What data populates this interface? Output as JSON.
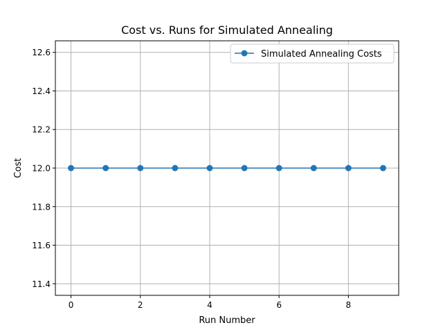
{
  "chart_data": {
    "type": "line",
    "title": "Cost vs. Runs for Simulated Annealing",
    "xlabel": "Run Number",
    "ylabel": "Cost",
    "x": [
      0,
      1,
      2,
      3,
      4,
      5,
      6,
      7,
      8,
      9
    ],
    "series": [
      {
        "name": "Simulated Annealing Costs",
        "values": [
          12.0,
          12.0,
          12.0,
          12.0,
          12.0,
          12.0,
          12.0,
          12.0,
          12.0,
          12.0
        ],
        "color": "#1f77b4",
        "marker": "circle"
      }
    ],
    "xlim": [
      -0.45,
      9.45
    ],
    "ylim": [
      11.34,
      12.66
    ],
    "xticks": [
      0,
      2,
      4,
      6,
      8
    ],
    "yticks": [
      11.4,
      11.6,
      11.8,
      12.0,
      12.2,
      12.4,
      12.6
    ],
    "xtick_labels": [
      "0",
      "2",
      "4",
      "6",
      "8"
    ],
    "ytick_labels": [
      "11.4",
      "11.6",
      "11.8",
      "12.0",
      "12.2",
      "12.4",
      "12.6"
    ],
    "grid": true,
    "legend_position": "top-right"
  }
}
